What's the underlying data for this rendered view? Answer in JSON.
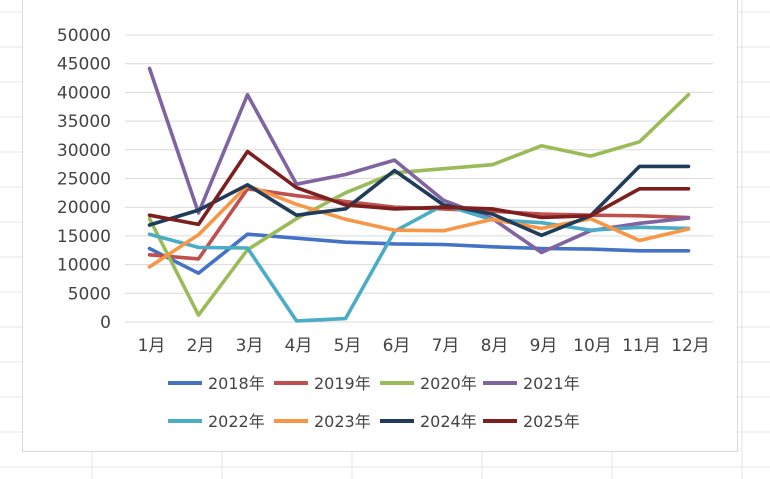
{
  "chart_data": {
    "type": "line",
    "title": "",
    "xlabel": "",
    "ylabel": "",
    "ylim": [
      0,
      50000
    ],
    "yticks": [
      0,
      5000,
      10000,
      15000,
      20000,
      25000,
      30000,
      35000,
      40000,
      45000,
      50000
    ],
    "categories": [
      "1月",
      "2月",
      "3月",
      "4月",
      "5月",
      "6月",
      "7月",
      "8月",
      "9月",
      "10月",
      "11月",
      "12月"
    ],
    "grid": true,
    "legend_position": "bottom",
    "series": [
      {
        "name": "2018年",
        "color": "#4472c4",
        "values": [
          12800,
          8500,
          15300,
          14600,
          13900,
          13600,
          13500,
          13100,
          12800,
          12700,
          12400,
          12400
        ]
      },
      {
        "name": "2019年",
        "color": "#c0504d",
        "values": [
          11700,
          11000,
          23200,
          22000,
          21000,
          20000,
          19700,
          19300,
          18800,
          18600,
          18500,
          18200
        ]
      },
      {
        "name": "2020年",
        "color": "#9bbb59",
        "values": [
          18000,
          1200,
          12600,
          18000,
          22500,
          26000,
          26700,
          27400,
          30700,
          28900,
          31400,
          39600
        ]
      },
      {
        "name": "2021年",
        "color": "#8064a2",
        "values": [
          44200,
          19000,
          39600,
          24000,
          25700,
          28200,
          21200,
          18000,
          12100,
          15900,
          17200,
          18100
        ]
      },
      {
        "name": "2022年",
        "color": "#4bacc6",
        "values": [
          15300,
          13000,
          12900,
          200,
          600,
          15800,
          20400,
          17800,
          17300,
          16000,
          16500,
          16300
        ]
      },
      {
        "name": "2023年",
        "color": "#f79646",
        "values": [
          9600,
          15200,
          23800,
          20500,
          17900,
          16000,
          15900,
          17900,
          16300,
          18000,
          14200,
          16200
        ]
      },
      {
        "name": "2024年",
        "color": "#1f3c5a",
        "values": [
          16900,
          19500,
          23900,
          18600,
          19700,
          26400,
          20400,
          18800,
          15100,
          18500,
          27100,
          27100
        ]
      },
      {
        "name": "2025年",
        "color": "#7b1f1f",
        "values": [
          18600,
          17000,
          29700,
          23400,
          20400,
          19700,
          20000,
          19700,
          18200,
          18500,
          23200,
          23200
        ]
      }
    ]
  }
}
